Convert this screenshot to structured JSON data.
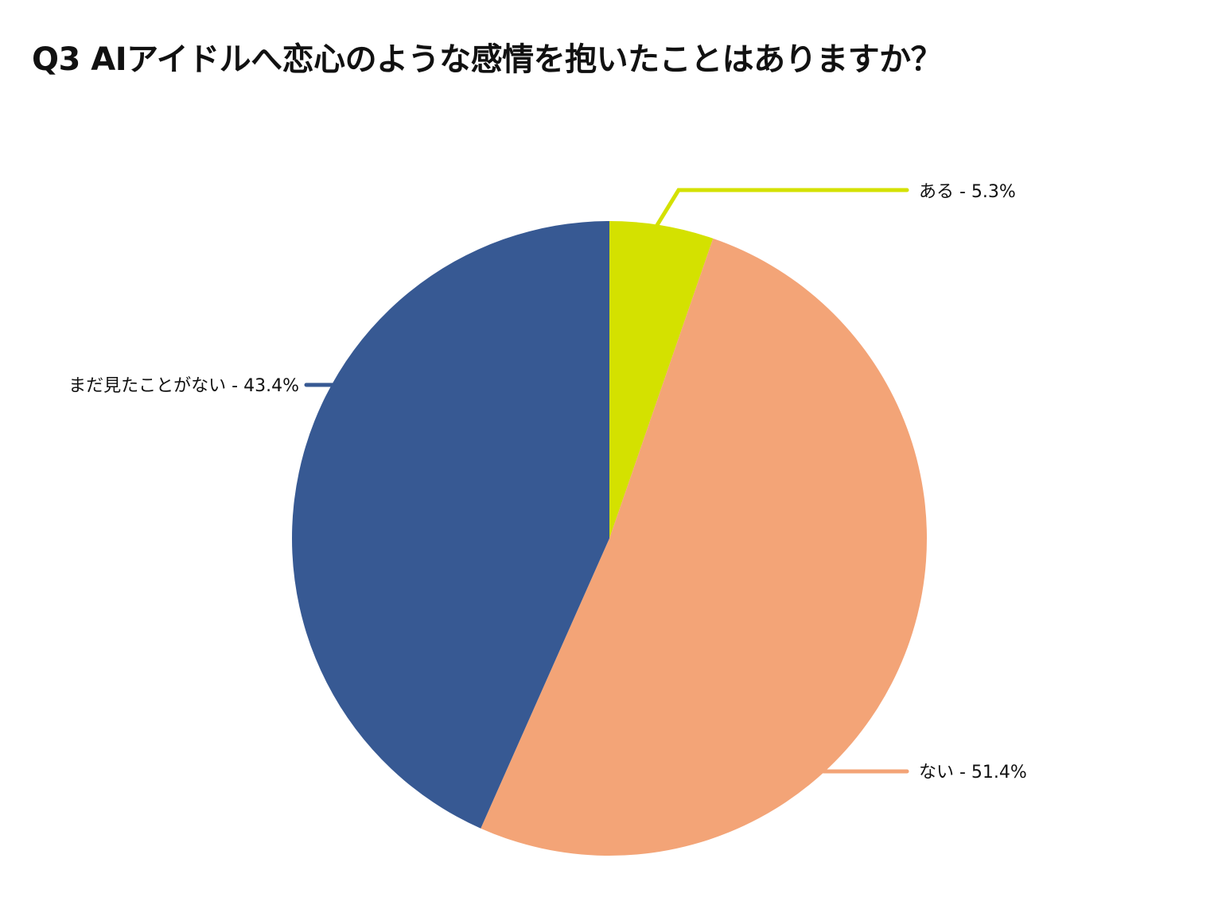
{
  "chart_data": {
    "type": "pie",
    "title": "Q3 AIアイドルへ恋心のような感情を抱いたことはありますか？",
    "start": "top",
    "direction": "clockwise",
    "slices": [
      {
        "label": "ある",
        "value": 5.3,
        "display": "ある - 5.3%",
        "color": "#d4e100"
      },
      {
        "label": "ない",
        "value": 51.4,
        "display": "ない - 51.4%",
        "color": "#f3a477"
      },
      {
        "label": "まだ見たことがない",
        "value": 43.4,
        "display": "まだ見たことがない - 43.4%",
        "color": "#375993"
      }
    ]
  }
}
